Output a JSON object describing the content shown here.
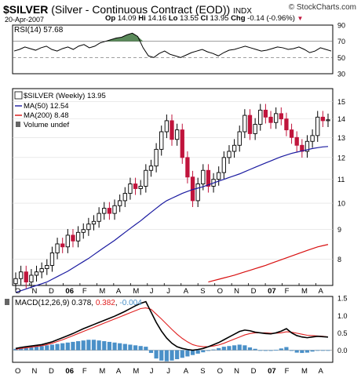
{
  "header": {
    "symbol": "$SILVER",
    "description": "(Silver - Continuous Contract (EOD))",
    "exchange": "INDX",
    "date": "20-Apr-2007",
    "quote": {
      "open_label": "Op",
      "open": "14.09",
      "high_label": "Hi",
      "high": "14.16",
      "low_label": "Lo",
      "low": "13.55",
      "close_label": "Cl",
      "close": "13.95",
      "change_label": "Chg",
      "change": "-0.14 (-0.96%)"
    },
    "watermark": "© StockCharts.com"
  },
  "colors": {
    "up_candle": "#000000",
    "down_candle": "#c0143c",
    "ma50": "#1a1aa0",
    "ma200": "#d81010",
    "rsi_fill": "#5a8a5a",
    "macd_hist": "#4a90c8",
    "macd_line": "#000000",
    "signal_line": "#e02020"
  },
  "chart_data": [
    {
      "type": "line",
      "panel": "RSI",
      "label": "RSI(14) 57.68",
      "ylim": [
        30,
        90
      ],
      "yticks": [
        90,
        70,
        50,
        30
      ],
      "reference_lines": [
        70,
        50
      ],
      "values": [
        58,
        60,
        63,
        61,
        59,
        62,
        64,
        60,
        58,
        61,
        63,
        60,
        64,
        66,
        62,
        64,
        68,
        70,
        72,
        74,
        75,
        78,
        80,
        76,
        62,
        52,
        50,
        55,
        58,
        54,
        52,
        50,
        53,
        56,
        58,
        60,
        57,
        55,
        52,
        56,
        59,
        60,
        62,
        64,
        62,
        60,
        58,
        59,
        61,
        63,
        62,
        60,
        61,
        63,
        60,
        56,
        58,
        62,
        60,
        58
      ]
    },
    {
      "type": "candlestick",
      "panel": "Price",
      "title": "$SILVER (Weekly) 13.95",
      "y_scale": "log",
      "ylim": [
        7.2,
        15.8
      ],
      "yticks": [
        8,
        9,
        10,
        11,
        12,
        13,
        14,
        15
      ],
      "x_tick_labels": [
        "O",
        "N",
        "D",
        "06",
        "F",
        "M",
        "A",
        "M",
        "J",
        "J",
        "A",
        "S",
        "O",
        "N",
        "D",
        "07",
        "F",
        "M",
        "A"
      ],
      "legend": [
        "$SILVER (Weekly) 13.95",
        "MA(50) 12.54",
        "MA(200) 8.48",
        "Volume undef"
      ],
      "closes": [
        7.4,
        7.6,
        7.3,
        7.5,
        7.6,
        7.7,
        7.8,
        8.2,
        8.5,
        8.4,
        8.8,
        8.6,
        8.9,
        9.0,
        9.2,
        9.3,
        9.6,
        9.8,
        9.6,
        9.9,
        10.1,
        10.4,
        10.8,
        10.6,
        10.7,
        11.4,
        11.6,
        12.4,
        13.3,
        13.9,
        12.9,
        13.4,
        12.0,
        11.1,
        10.1,
        10.8,
        11.4,
        10.7,
        11.0,
        11.3,
        12.0,
        12.3,
        12.6,
        13.3,
        14.2,
        13.2,
        13.7,
        14.5,
        14.1,
        13.8,
        14.3,
        14.0,
        13.4,
        13.0,
        12.6,
        12.3,
        12.8,
        13.1,
        14.1,
        13.9,
        13.95
      ],
      "series": [
        {
          "name": "MA(50) 12.54",
          "values": [
            7.0,
            7.05,
            7.1,
            7.15,
            7.2,
            7.25,
            7.3,
            7.38,
            7.46,
            7.54,
            7.62,
            7.72,
            7.82,
            7.92,
            8.02,
            8.14,
            8.26,
            8.38,
            8.5,
            8.62,
            8.76,
            8.9,
            9.04,
            9.18,
            9.32,
            9.48,
            9.64,
            9.8,
            9.96,
            10.1,
            10.2,
            10.3,
            10.4,
            10.48,
            10.56,
            10.62,
            10.68,
            10.76,
            10.84,
            10.92,
            11.0,
            11.08,
            11.16,
            11.24,
            11.34,
            11.44,
            11.54,
            11.64,
            11.74,
            11.84,
            11.94,
            12.04,
            12.12,
            12.2,
            12.26,
            12.32,
            12.38,
            12.44,
            12.48,
            12.52,
            12.54
          ]
        },
        {
          "name": "MA(200) 8.48",
          "values": [
            7.3,
            7.34,
            7.38,
            7.42,
            7.46,
            7.5,
            7.55,
            7.6,
            7.65,
            7.7,
            7.75,
            7.8,
            7.86,
            7.92,
            7.98,
            8.04,
            8.1,
            8.16,
            8.22,
            8.28,
            8.34,
            8.4,
            8.44,
            8.48
          ]
        },
        {
          "name": "Volume undef",
          "values": []
        }
      ]
    },
    {
      "type": "bar",
      "panel": "MACD",
      "label": "MACD(12,26,9) 0.378, 0.382, -0.004",
      "ylim": [
        -0.35,
        1.55
      ],
      "yticks": [
        1.5,
        1.0,
        0.5,
        0.0
      ],
      "x_tick_labels": [
        "O",
        "N",
        "D",
        "06",
        "F",
        "M",
        "A",
        "M",
        "J",
        "J",
        "A",
        "S",
        "O",
        "N",
        "D",
        "07",
        "F",
        "M",
        "A"
      ],
      "series": [
        {
          "name": "MACD",
          "values": [
            0.05,
            0.08,
            0.1,
            0.12,
            0.14,
            0.16,
            0.2,
            0.24,
            0.3,
            0.36,
            0.42,
            0.48,
            0.55,
            0.62,
            0.68,
            0.74,
            0.8,
            0.86,
            0.92,
            0.98,
            1.05,
            1.12,
            1.2,
            1.28,
            1.35,
            1.4,
            1.1,
            0.8,
            0.55,
            0.35,
            0.2,
            0.1,
            0.05,
            0.02,
            0.0,
            0.02,
            0.05,
            0.1,
            0.16,
            0.22,
            0.3,
            0.38,
            0.46,
            0.54,
            0.58,
            0.56,
            0.52,
            0.5,
            0.48,
            0.47,
            0.5,
            0.55,
            0.62,
            0.5,
            0.42,
            0.38,
            0.36,
            0.38,
            0.4,
            0.39,
            0.378
          ]
        },
        {
          "name": "Signal",
          "values": [
            0.03,
            0.05,
            0.07,
            0.09,
            0.11,
            0.13,
            0.16,
            0.2,
            0.25,
            0.3,
            0.36,
            0.42,
            0.48,
            0.54,
            0.6,
            0.66,
            0.72,
            0.78,
            0.84,
            0.9,
            0.96,
            1.02,
            1.08,
            1.14,
            1.2,
            1.22,
            1.18,
            1.04,
            0.9,
            0.75,
            0.6,
            0.46,
            0.34,
            0.24,
            0.16,
            0.12,
            0.1,
            0.1,
            0.12,
            0.15,
            0.2,
            0.26,
            0.32,
            0.38,
            0.44,
            0.48,
            0.5,
            0.5,
            0.5,
            0.49,
            0.49,
            0.5,
            0.53,
            0.52,
            0.49,
            0.46,
            0.43,
            0.42,
            0.41,
            0.4,
            0.382
          ]
        },
        {
          "name": "Histogram",
          "values": [
            0.04,
            0.05,
            0.06,
            0.08,
            0.1,
            0.12,
            0.14,
            0.16,
            0.18,
            0.2,
            0.22,
            0.24,
            0.26,
            0.28,
            0.3,
            0.3,
            0.28,
            0.26,
            0.24,
            0.22,
            0.2,
            0.18,
            0.16,
            0.14,
            0.12,
            0.1,
            -0.08,
            -0.24,
            -0.3,
            -0.32,
            -0.3,
            -0.26,
            -0.22,
            -0.18,
            -0.14,
            -0.1,
            -0.06,
            -0.02,
            0.02,
            0.06,
            0.1,
            0.12,
            0.14,
            0.16,
            0.14,
            0.08,
            0.04,
            0.0,
            -0.02,
            -0.02,
            0.01,
            0.05,
            0.09,
            -0.02,
            -0.07,
            -0.08,
            -0.07,
            -0.04,
            -0.01,
            -0.01,
            -0.004
          ]
        }
      ]
    }
  ]
}
